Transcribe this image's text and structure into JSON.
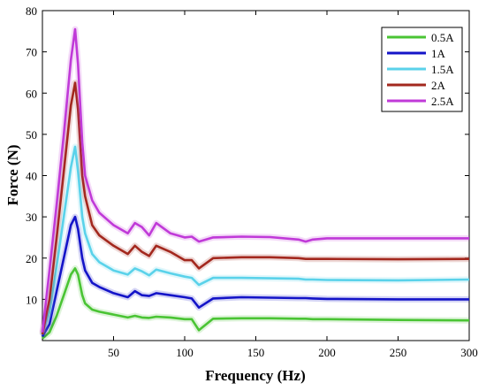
{
  "chart_data": {
    "type": "line",
    "xlabel": "Frequency (Hz)",
    "ylabel": "Force (N)",
    "xlim": [
      0,
      300
    ],
    "ylim": [
      0,
      80
    ],
    "xticks": [
      50,
      100,
      150,
      200,
      250,
      300
    ],
    "yticks": [
      10,
      20,
      30,
      40,
      50,
      60,
      70,
      80
    ],
    "grid": false,
    "legend_position": "top-right",
    "x": [
      0,
      5,
      10,
      15,
      20,
      23,
      25,
      28,
      30,
      35,
      40,
      50,
      60,
      65,
      70,
      75,
      80,
      90,
      100,
      105,
      110,
      120,
      140,
      160,
      180,
      185,
      190,
      200,
      250,
      300
    ],
    "series": [
      {
        "name": "0.5A",
        "color": "#4ac434",
        "values": [
          0.5,
          2,
          6,
          11,
          16,
          17.5,
          16,
          11,
          9,
          7.5,
          7,
          6.3,
          5.6,
          6,
          5.6,
          5.5,
          5.8,
          5.6,
          5.2,
          5.2,
          2.5,
          5.3,
          5.4,
          5.4,
          5.3,
          5.3,
          5.2,
          5.2,
          5.0,
          4.9
        ]
      },
      {
        "name": "1A",
        "color": "#1414c8",
        "values": [
          1,
          4,
          12,
          20,
          28,
          30,
          27,
          20,
          17,
          14,
          13,
          11.5,
          10.5,
          12,
          11,
          10.8,
          11.5,
          11,
          10.5,
          10.2,
          8,
          10.2,
          10.5,
          10.4,
          10.3,
          10.3,
          10.2,
          10.1,
          10,
          10
        ]
      },
      {
        "name": "1.5A",
        "color": "#5ad2ea",
        "values": [
          1.5,
          7,
          18,
          30,
          42,
          47,
          41,
          30,
          26,
          21,
          19,
          17,
          16,
          17.5,
          16.8,
          15.8,
          17.2,
          16.3,
          15.5,
          15.2,
          13.5,
          15.2,
          15.2,
          15.1,
          15,
          14.8,
          14.8,
          14.7,
          14.6,
          14.8
        ]
      },
      {
        "name": "2A",
        "color": "#a3281e",
        "values": [
          1.5,
          10,
          25,
          41,
          57,
          62.5,
          56,
          40,
          35,
          28,
          25.5,
          23,
          21,
          23,
          21.5,
          20.5,
          23,
          21.5,
          19.5,
          19.5,
          17.5,
          20,
          20.2,
          20.2,
          20,
          19.8,
          19.8,
          19.8,
          19.7,
          19.8
        ]
      },
      {
        "name": "2.5A",
        "color": "#c03ad8",
        "values": [
          2,
          17,
          33,
          50,
          68,
          75.5,
          67,
          48,
          40,
          34,
          31,
          28,
          26,
          28.5,
          27.5,
          25.5,
          28.5,
          26,
          25,
          25.2,
          24,
          25,
          25.2,
          25.1,
          24.5,
          24,
          24.5,
          24.8,
          24.8,
          24.8
        ]
      }
    ]
  }
}
